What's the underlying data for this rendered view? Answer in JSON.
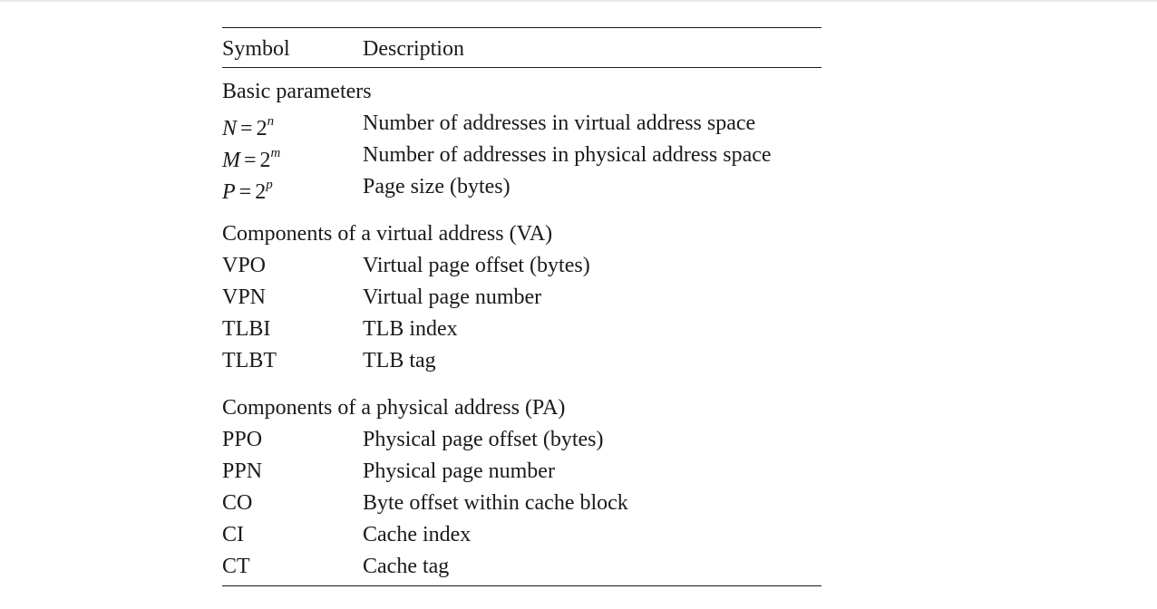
{
  "table": {
    "header": {
      "symbol": "Symbol",
      "description": "Description"
    },
    "groups": [
      {
        "title": "Basic parameters",
        "rows": [
          {
            "sym_var": "N",
            "sym_base": "2",
            "sym_exp": "n",
            "description": "Number of addresses in virtual address space"
          },
          {
            "sym_var": "M",
            "sym_base": "2",
            "sym_exp": "m",
            "description": "Number of addresses in physical address space"
          },
          {
            "sym_var": "P",
            "sym_base": "2",
            "sym_exp": "p",
            "description": "Page size (bytes)"
          }
        ]
      },
      {
        "title": "Components of a virtual address (VA)",
        "rows": [
          {
            "symbol": "VPO",
            "description": "Virtual page offset (bytes)"
          },
          {
            "symbol": "VPN",
            "description": "Virtual page number"
          },
          {
            "symbol": "TLBI",
            "description": "TLB index"
          },
          {
            "symbol": "TLBT",
            "description": "TLB tag"
          }
        ]
      },
      {
        "title": "Components of a physical address (PA)",
        "rows": [
          {
            "symbol": "PPO",
            "description": "Physical page offset (bytes)"
          },
          {
            "symbol": "PPN",
            "description": "Physical page number"
          },
          {
            "symbol": "CO",
            "description": "Byte offset within cache block"
          },
          {
            "symbol": "CI",
            "description": "Cache index"
          },
          {
            "symbol": "CT",
            "description": "Cache tag"
          }
        ]
      }
    ]
  }
}
